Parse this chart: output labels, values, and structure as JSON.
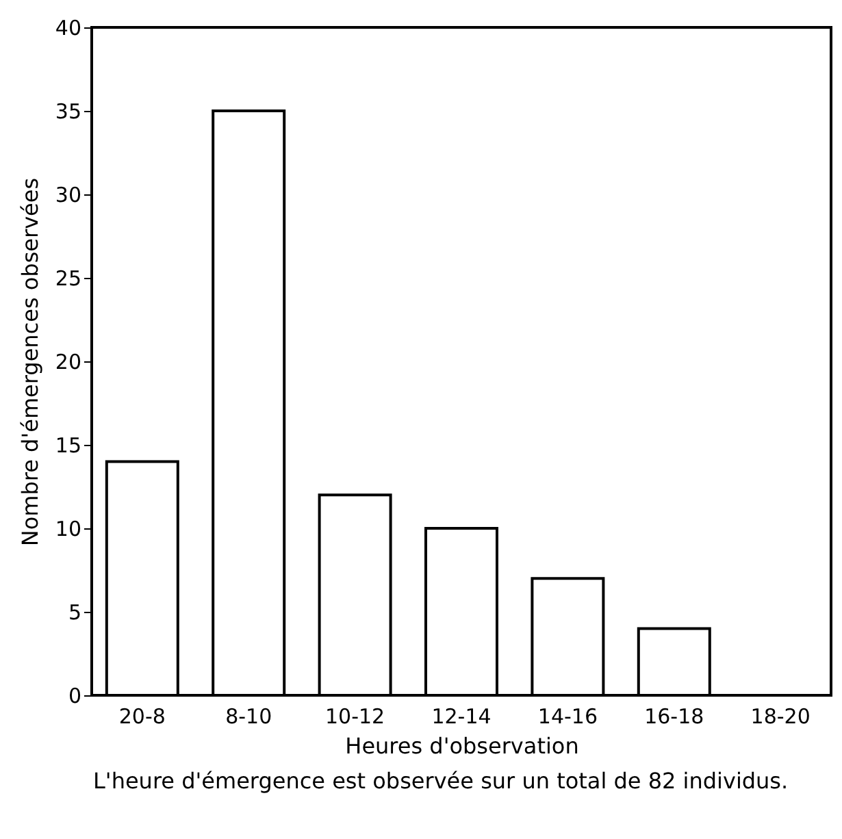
{
  "chart_data": {
    "type": "bar",
    "xlabel": "Heures d'observation",
    "ylabel": "Nombre d'émergences observées",
    "categories": [
      "20-8",
      "8-10",
      "10-12",
      "12-14",
      "14-16",
      "16-18",
      "18-20"
    ],
    "values": [
      14,
      35,
      12,
      10,
      7,
      4,
      0
    ],
    "color": "#ffffff",
    "ylim": [
      0,
      40
    ],
    "yticks": [
      0,
      5,
      10,
      15,
      20,
      25,
      30,
      35,
      40
    ],
    "grid": false,
    "annotations": [
      "L'heure d'émergence est observée sur un total de 82 individus."
    ]
  }
}
